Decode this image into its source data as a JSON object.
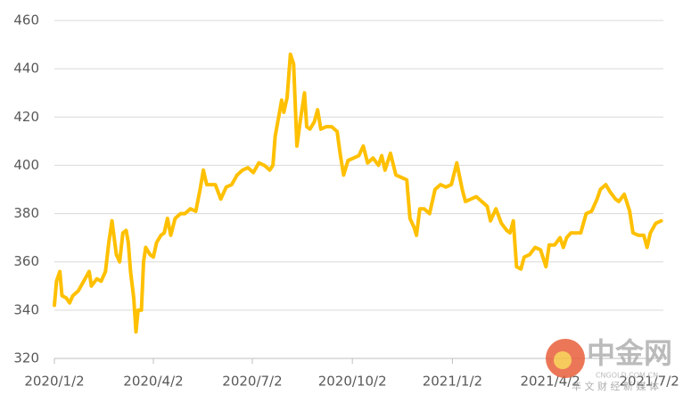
{
  "chart_data": {
    "type": "line",
    "color": "#ffc000",
    "grid": true,
    "x": [
      "2020/1/2",
      "2020/1/4",
      "2020/1/7",
      "2020/1/9",
      "2020/1/13",
      "2020/1/16",
      "2020/1/19",
      "2020/1/24",
      "2020/1/29",
      "2020/2/3",
      "2020/2/5",
      "2020/2/10",
      "2020/2/14",
      "2020/2/18",
      "2020/2/21",
      "2020/2/24",
      "2020/2/28",
      "2020/3/2",
      "2020/3/5",
      "2020/3/8",
      "2020/3/10",
      "2020/3/12",
      "2020/3/15",
      "2020/3/17",
      "2020/3/19",
      "2020/3/22",
      "2020/3/24",
      "2020/3/26",
      "2020/3/30",
      "2020/4/2",
      "2020/4/5",
      "2020/4/9",
      "2020/4/12",
      "2020/4/15",
      "2020/4/18",
      "2020/4/22",
      "2020/4/27",
      "2020/5/1",
      "2020/5/6",
      "2020/5/11",
      "2020/5/15",
      "2020/5/18",
      "2020/5/21",
      "2020/5/24",
      "2020/5/29",
      "2020/6/3",
      "2020/6/8",
      "2020/6/13",
      "2020/6/18",
      "2020/6/23",
      "2020/6/28",
      "2020/7/3",
      "2020/7/8",
      "2020/7/13",
      "2020/7/18",
      "2020/7/21",
      "2020/7/23",
      "2020/7/27",
      "2020/7/29",
      "2020/7/31",
      "2020/8/3",
      "2020/8/6",
      "2020/8/9",
      "2020/8/12",
      "2020/8/15",
      "2020/8/19",
      "2020/8/21",
      "2020/8/24",
      "2020/8/28",
      "2020/8/31",
      "2020/9/3",
      "2020/9/8",
      "2020/9/13",
      "2020/9/18",
      "2020/9/21",
      "2020/9/24",
      "2020/9/28",
      "2020/10/3",
      "2020/10/8",
      "2020/10/12",
      "2020/10/16",
      "2020/10/21",
      "2020/10/26",
      "2020/10/29",
      "2020/11/1",
      "2020/11/6",
      "2020/11/11",
      "2020/11/16",
      "2020/11/21",
      "2020/11/24",
      "2020/11/28",
      "2020/11/30",
      "2020/12/3",
      "2020/12/7",
      "2020/12/12",
      "2020/12/17",
      "2020/12/22",
      "2020/12/27",
      "2021/1/1",
      "2021/1/6",
      "2021/1/11",
      "2021/1/14",
      "2021/1/19",
      "2021/1/24",
      "2021/1/29",
      "2021/2/3",
      "2021/2/6",
      "2021/2/11",
      "2021/2/16",
      "2021/2/21",
      "2021/2/24",
      "2021/2/27",
      "2021/3/2",
      "2021/3/6",
      "2021/3/9",
      "2021/3/14",
      "2021/3/19",
      "2021/3/24",
      "2021/3/29",
      "2021/4/1",
      "2021/4/6",
      "2021/4/11",
      "2021/4/14",
      "2021/4/17",
      "2021/4/21",
      "2021/4/26",
      "2021/4/30",
      "2021/5/5",
      "2021/5/10",
      "2021/5/15",
      "2021/5/18",
      "2021/5/23",
      "2021/5/27",
      "2021/6/1",
      "2021/6/4",
      "2021/6/9",
      "2021/6/14",
      "2021/6/17",
      "2021/6/22",
      "2021/6/27",
      "2021/6/30",
      "2021/7/3",
      "2021/7/8",
      "2021/7/13"
    ],
    "values": [
      342,
      352,
      356,
      346,
      345,
      343,
      346,
      348,
      352,
      356,
      350,
      353,
      352,
      356,
      368,
      377,
      363,
      360,
      372,
      373,
      368,
      356,
      345,
      331,
      340,
      340,
      360,
      366,
      363,
      362,
      368,
      371,
      372,
      378,
      371,
      378,
      380,
      380,
      382,
      381,
      390,
      398,
      392,
      392,
      392,
      386,
      391,
      392,
      396,
      398,
      399,
      397,
      401,
      400,
      398,
      400,
      412,
      422,
      427,
      422,
      428,
      446,
      442,
      408,
      418,
      430,
      416,
      415,
      418,
      423,
      415,
      416,
      416,
      414,
      404,
      396,
      402,
      403,
      404,
      408,
      401,
      403,
      400,
      404,
      398,
      405,
      396,
      395,
      394,
      378,
      374,
      371,
      382,
      382,
      380,
      390,
      392,
      391,
      392,
      401,
      390,
      385,
      386,
      387,
      385,
      383,
      377,
      382,
      376,
      373,
      372,
      377,
      358,
      357,
      362,
      363,
      366,
      365,
      358,
      367,
      367,
      370,
      366,
      370,
      372,
      372,
      372,
      380,
      381,
      386,
      390,
      392,
      389,
      386,
      385,
      388,
      381,
      372,
      371,
      371,
      366,
      372,
      376,
      377
    ],
    "xlim": [
      "2020/1/2",
      "2021/7/15"
    ],
    "xticks": [
      "2020/1/2",
      "2020/4/2",
      "2020/7/2",
      "2020/10/2",
      "2021/1/2",
      "2021/4/2",
      "2021/7/2"
    ],
    "ylim": [
      320,
      460
    ],
    "yticks": [
      320,
      340,
      360,
      380,
      400,
      420,
      440,
      460
    ]
  },
  "watermark": {
    "brand": "中金网",
    "site": "CNGOLD.COM.CN",
    "slogan": "华 文 财 经 新 媒 体"
  }
}
